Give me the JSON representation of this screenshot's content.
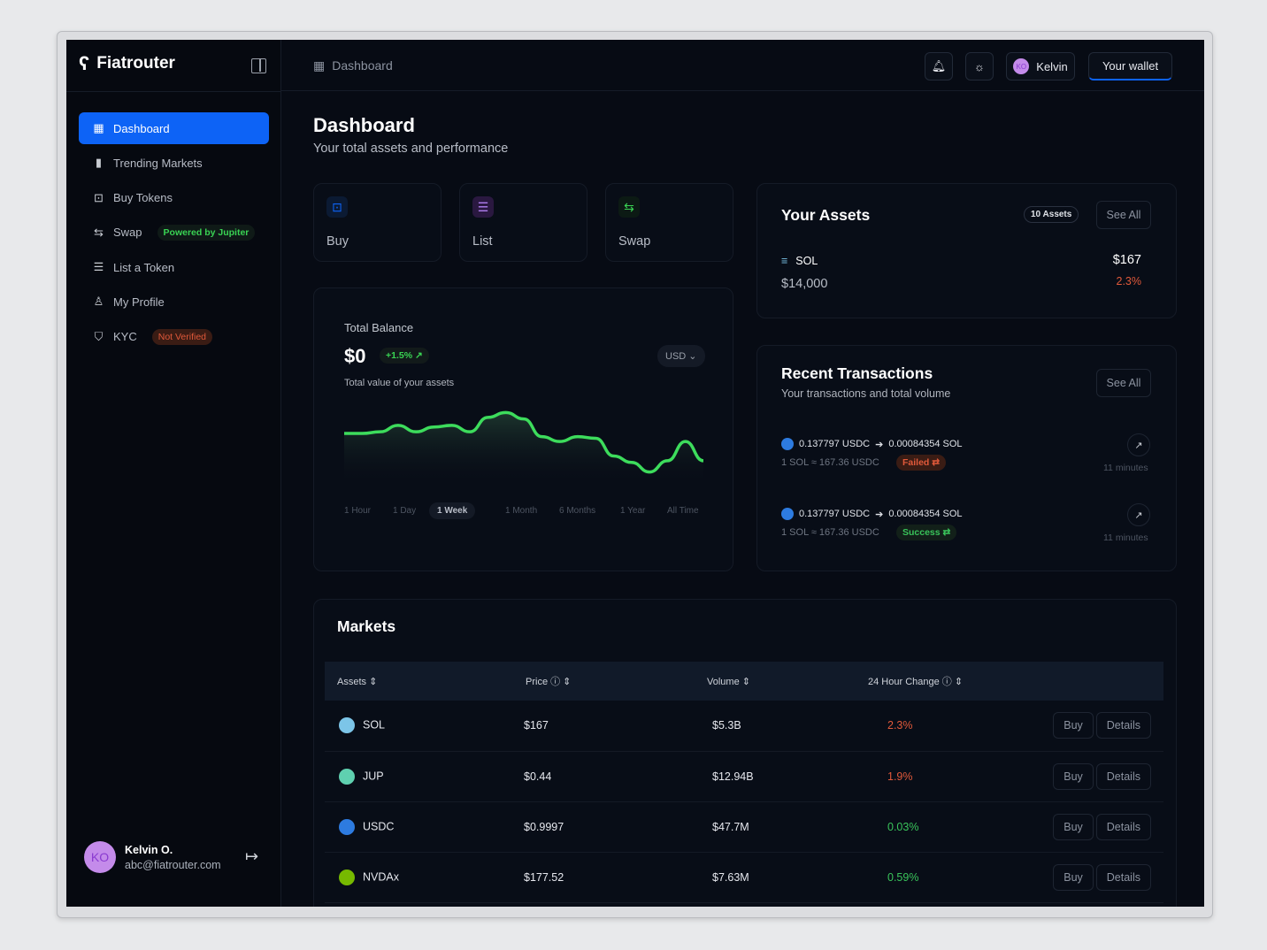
{
  "app": {
    "name": "Fiatrouter"
  },
  "sidebar": {
    "items": [
      {
        "label": "Dashboard",
        "icon": "grid-icon"
      },
      {
        "label": "Trending Markets",
        "icon": "bar-chart-icon"
      },
      {
        "label": "Buy Tokens",
        "icon": "bag-icon"
      },
      {
        "label": "Swap",
        "icon": "swap-icon",
        "badge": "Powered by Jupiter"
      },
      {
        "label": "List a Token",
        "icon": "list-icon"
      },
      {
        "label": "My Profile",
        "icon": "user-icon"
      },
      {
        "label": "KYC",
        "icon": "shield-icon",
        "badge": "Not Verified"
      }
    ],
    "user": {
      "initials": "KO",
      "name": "Kelvin O.",
      "email": "abc@fiatrouter.com"
    }
  },
  "header": {
    "breadcrumb": "Dashboard",
    "user_initials": "KO",
    "user_name": "Kelvin",
    "wallet": "Your wallet"
  },
  "page": {
    "title": "Dashboard",
    "subtitle": "Your total assets and performance"
  },
  "quick_actions": [
    {
      "label": "Buy",
      "color": "#0d63f6"
    },
    {
      "label": "List",
      "color": "#9b5de5"
    },
    {
      "label": "Swap",
      "color": "#39d353"
    }
  ],
  "balance": {
    "label": "Total Balance",
    "value": "$0",
    "change": "+1.5% ↗",
    "currency": "USD",
    "sub": "Total value of your assets",
    "timeframes": [
      "1 Hour",
      "1 Day",
      "1 Week",
      "1 Month",
      "6 Months",
      "1 Year",
      "All Time"
    ],
    "active": "1 Week"
  },
  "chart_data": {
    "type": "area",
    "title": "Total Balance",
    "x": [
      0,
      1,
      2,
      3,
      4,
      5,
      6,
      7,
      8,
      9,
      10,
      11,
      12,
      13,
      14,
      15,
      16,
      17,
      18,
      19,
      20
    ],
    "values": [
      48,
      48,
      49,
      53,
      49,
      52,
      53,
      49,
      58,
      61,
      57,
      46,
      43,
      46,
      45,
      34,
      30,
      24,
      31,
      43,
      31
    ],
    "ylim": [
      15,
      70
    ],
    "color": "#3ddc5c"
  },
  "assets": {
    "title": "Your Assets",
    "count": "10 Assets",
    "see_all": "See All",
    "items": [
      {
        "symbol": "SOL",
        "holding": "$14,000",
        "price": "$167",
        "change": "2.3%"
      }
    ]
  },
  "transactions": {
    "title": "Recent Transactions",
    "subtitle": "Your transactions and total volume",
    "see_all": "See All",
    "items": [
      {
        "from": "0.137797 USDC",
        "to": "0.00084354 SOL",
        "rate": "1 SOL ≈ 167.36  USDC",
        "status": "Failed ⇄",
        "time": "11 minutes"
      },
      {
        "from": "0.137797 USDC",
        "to": "0.00084354 SOL",
        "rate": "1 SOL ≈ 167.36  USDC",
        "status": "Success ⇄",
        "time": "11 minutes"
      }
    ]
  },
  "markets": {
    "title": "Markets",
    "columns": [
      "Assets",
      "Price",
      "Volume",
      "24 Hour Change"
    ],
    "buy": "Buy",
    "details": "Details",
    "rows": [
      {
        "symbol": "SOL",
        "price": "$167",
        "volume": "$5.3B",
        "change": "2.3%",
        "dir": "neg"
      },
      {
        "symbol": "JUP",
        "price": "$0.44",
        "volume": "$12.94B",
        "change": "1.9%",
        "dir": "neg"
      },
      {
        "symbol": "USDC",
        "price": "$0.9997",
        "volume": "$47.7M",
        "change": "0.03%",
        "dir": "pos"
      },
      {
        "symbol": "NVDAx",
        "price": "$177.52",
        "volume": "$7.63M",
        "change": "0.59%",
        "dir": "pos"
      }
    ]
  }
}
